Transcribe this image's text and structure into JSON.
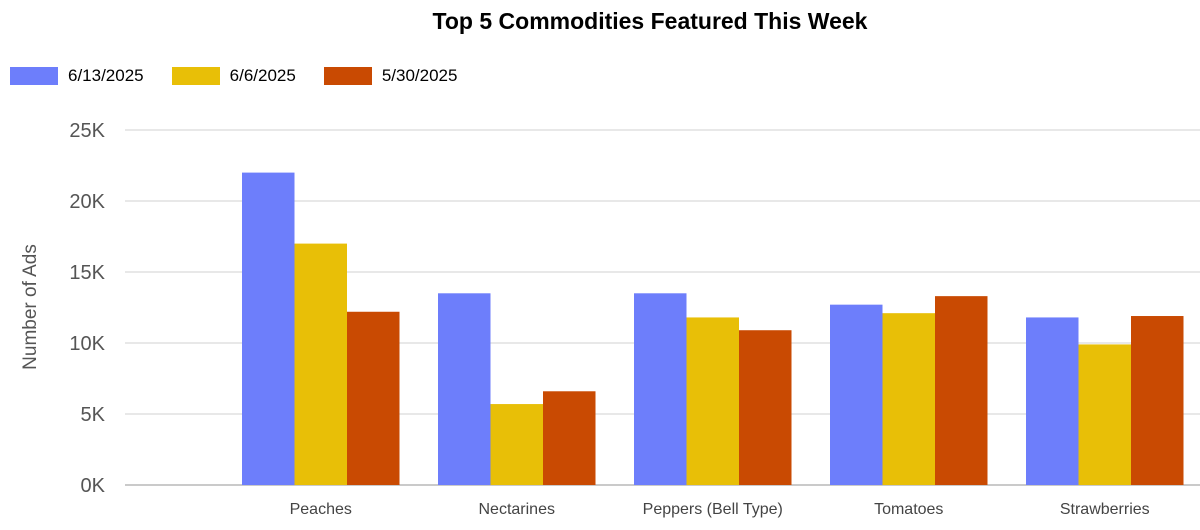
{
  "chart_data": {
    "type": "bar",
    "title": "Top 5 Commodities Featured This Week",
    "ylabel": "Number of Ads",
    "xlabel": "",
    "categories": [
      "Peaches",
      "Nectarines",
      "Peppers (Bell Type)",
      "Tomatoes",
      "Strawberries"
    ],
    "series": [
      {
        "name": "6/13/2025",
        "color": "#6d7efb",
        "values": [
          22000,
          13500,
          13500,
          12700,
          11800
        ]
      },
      {
        "name": "6/6/2025",
        "color": "#e8bf07",
        "values": [
          17000,
          5700,
          11800,
          12100,
          9900
        ]
      },
      {
        "name": "5/30/2025",
        "color": "#c94a02",
        "values": [
          12200,
          6600,
          10900,
          13300,
          11900
        ]
      }
    ],
    "ylim": [
      0,
      25000
    ],
    "yticks": [
      0,
      5000,
      10000,
      15000,
      20000,
      25000
    ],
    "ytick_labels": [
      "0K",
      "5K",
      "10K",
      "15K",
      "20K",
      "25K"
    ],
    "grid": true,
    "legend_position": "top-left"
  }
}
